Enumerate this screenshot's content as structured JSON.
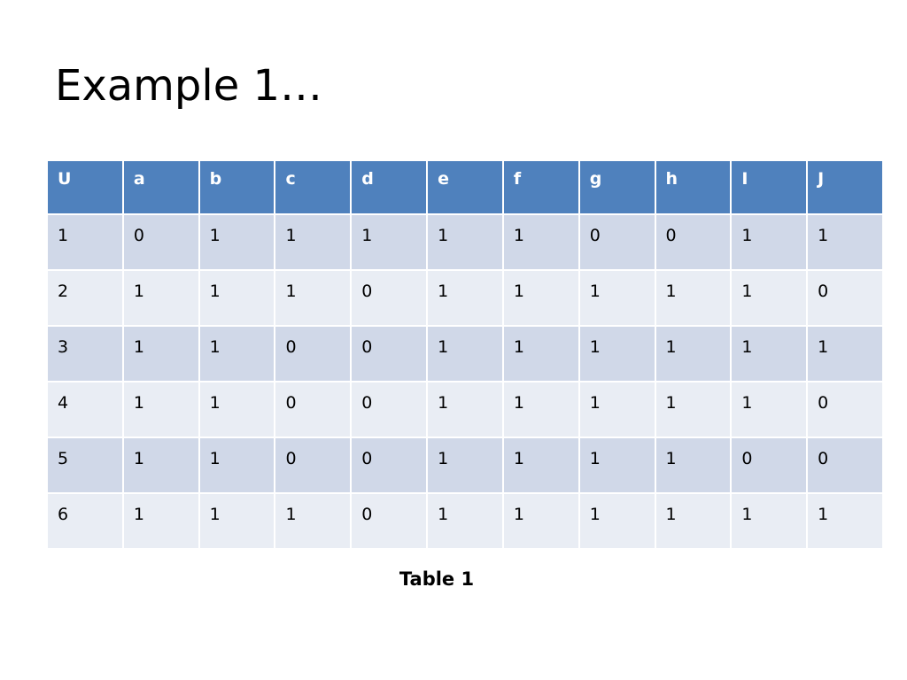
{
  "title": "Example 1…",
  "table": {
    "header": [
      "U",
      "a",
      "b",
      "c",
      "d",
      "e",
      "f",
      "g",
      "h",
      "I",
      "J"
    ],
    "rows": [
      [
        1,
        0,
        1,
        1,
        1,
        1,
        1,
        0,
        0,
        1,
        1
      ],
      [
        2,
        1,
        1,
        1,
        0,
        1,
        1,
        1,
        1,
        1,
        0
      ],
      [
        3,
        1,
        1,
        0,
        0,
        1,
        1,
        1,
        1,
        1,
        1
      ],
      [
        4,
        1,
        1,
        0,
        0,
        1,
        1,
        1,
        1,
        1,
        0
      ],
      [
        5,
        1,
        1,
        0,
        0,
        1,
        1,
        1,
        1,
        0,
        0
      ],
      [
        6,
        1,
        1,
        1,
        0,
        1,
        1,
        1,
        1,
        1,
        1
      ]
    ],
    "caption": "Table 1"
  }
}
